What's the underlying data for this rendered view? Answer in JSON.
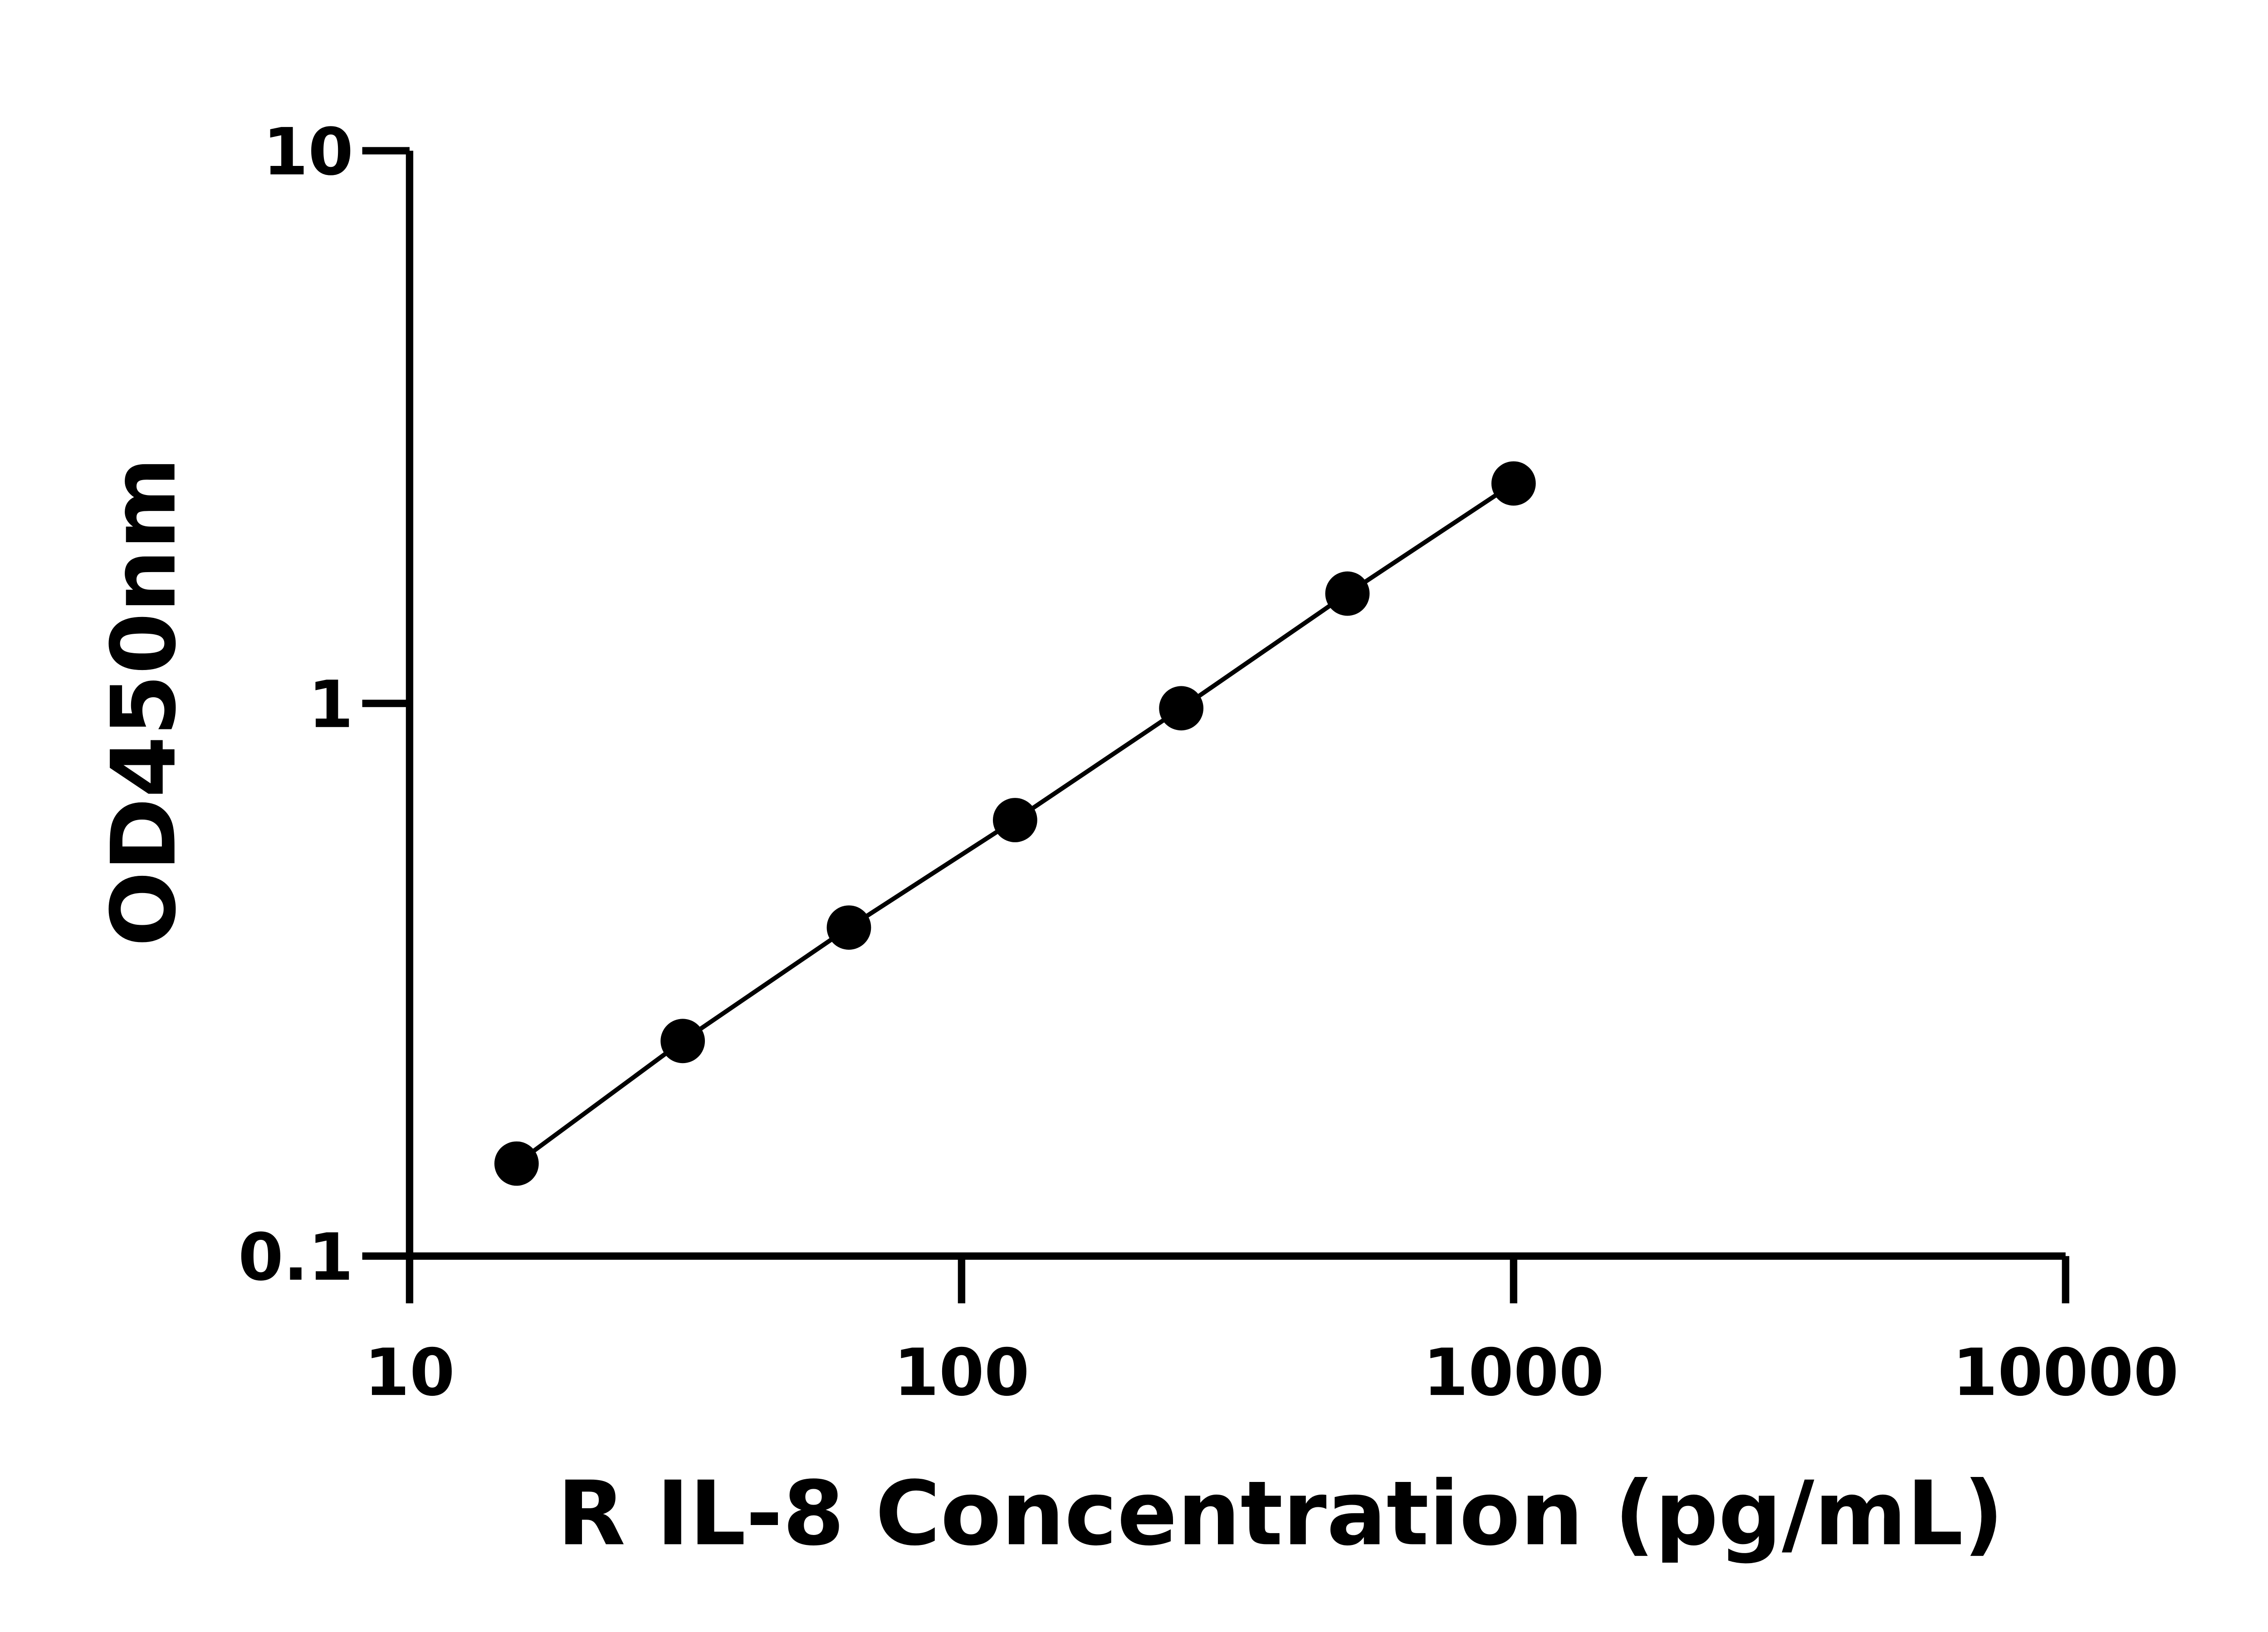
{
  "chart_data": {
    "type": "line",
    "x_label": "R IL-8 Concentration (pg/mL)",
    "y_label": "OD450nm",
    "x": [
      15.625,
      31.25,
      62.5,
      125,
      250,
      500,
      1000
    ],
    "series": [
      {
        "color": "#000000",
        "values": [
          0.147,
          0.245,
          0.393,
          0.615,
          0.98,
          1.58,
          2.5
        ]
      }
    ],
    "xlog": true,
    "ylog": true,
    "xlim": [
      10,
      10000
    ],
    "xticks": [
      10,
      100,
      1000,
      10000
    ],
    "ylim": [
      0.1,
      10
    ],
    "yticks": [
      0.1,
      1,
      10
    ],
    "markers": true
  }
}
